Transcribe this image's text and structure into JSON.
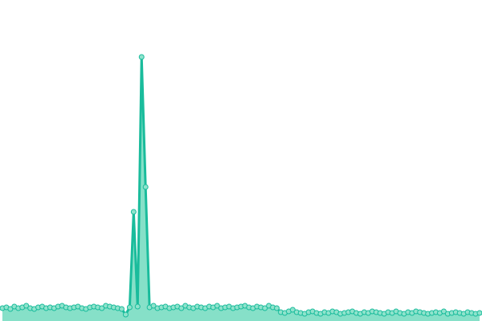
{
  "chart_data": {
    "type": "area",
    "color": "#1abc9c",
    "fill_color": "#86e0c8",
    "marker_fill": "#8fe3cc",
    "ylim": [
      0,
      400
    ],
    "values": [
      16,
      17,
      15,
      18,
      16,
      17,
      19,
      16,
      15,
      17,
      18,
      16,
      17,
      16,
      18,
      19,
      17,
      16,
      17,
      18,
      16,
      15,
      17,
      18,
      17,
      16,
      19,
      18,
      17,
      16,
      15,
      8,
      17,
      136,
      18,
      329,
      167,
      17,
      19,
      16,
      17,
      18,
      16,
      17,
      18,
      16,
      19,
      17,
      16,
      18,
      17,
      16,
      18,
      17,
      19,
      16,
      17,
      18,
      16,
      17,
      18,
      19,
      17,
      16,
      18,
      17,
      16,
      19,
      17,
      16,
      11,
      10,
      12,
      14,
      11,
      10,
      9,
      11,
      12,
      10,
      9,
      11,
      10,
      12,
      11,
      9,
      10,
      11,
      12,
      10,
      9,
      11,
      10,
      12,
      11,
      10,
      9,
      11,
      10,
      12,
      10,
      9,
      11,
      10,
      12,
      11,
      10,
      9,
      10,
      11,
      10,
      12,
      9,
      10,
      11,
      10,
      9,
      11,
      10,
      9,
      10
    ]
  }
}
